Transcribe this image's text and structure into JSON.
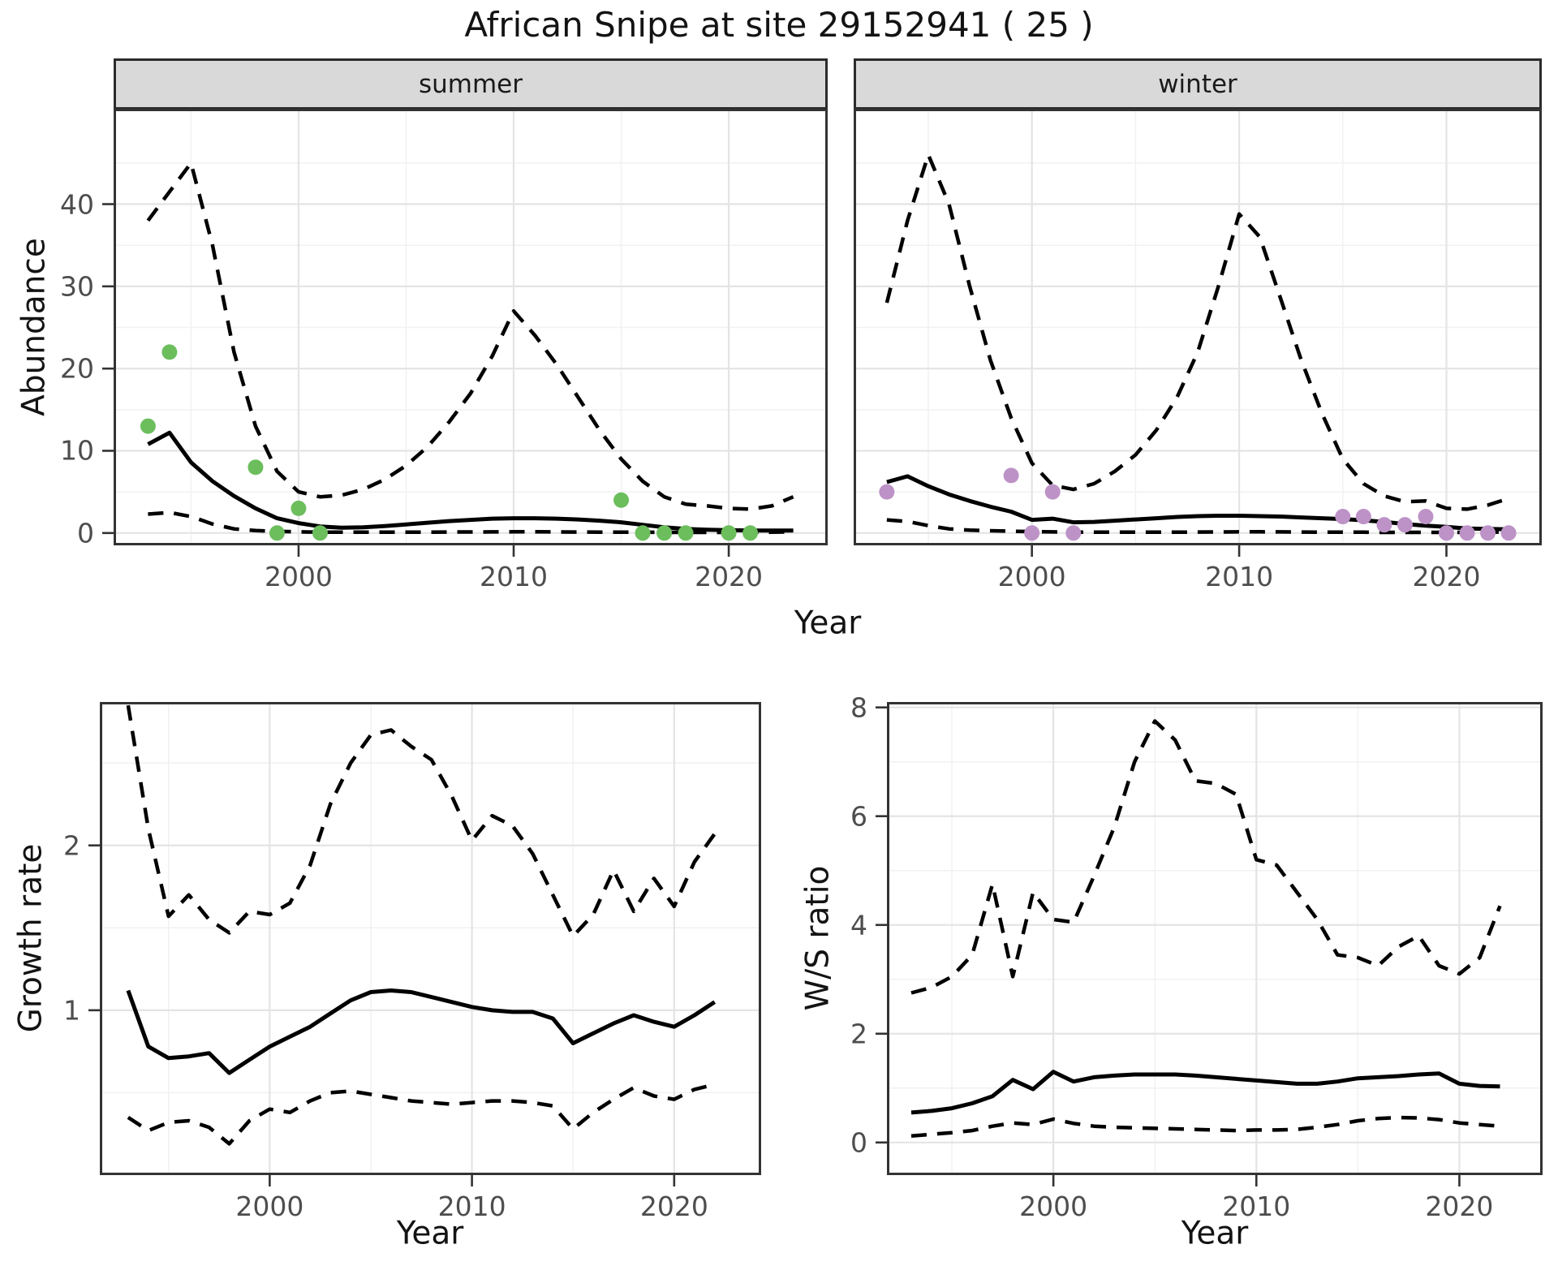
{
  "title": "African Snipe at site 29152941 ( 25 )",
  "colors": {
    "summer_point": "#6cbe5d",
    "winter_point": "#bd93c7",
    "line": "#000000",
    "strip_bg": "#d9d9d9",
    "panel_border": "#333333",
    "grid_major": "#e4e4e4",
    "grid_minor": "#f1f1f1",
    "tick_label": "#4d4d4d",
    "axis_title": "#131313"
  },
  "chart_data": [
    {
      "id": "abundance-summer",
      "type": "line",
      "strip_label": "summer",
      "xlabel": "Year",
      "ylabel": "Abundance",
      "xlim": [
        1991.4,
        2024.6
      ],
      "ylim": [
        -1.5,
        51.6
      ],
      "xticks": [
        2000,
        2010,
        2020
      ],
      "xminor": [
        1995,
        2005,
        2015
      ],
      "yticks": [
        0,
        10,
        20,
        30,
        40
      ],
      "yminor": [
        5,
        15,
        25,
        35,
        45
      ],
      "x": [
        1993,
        1994,
        1995,
        1996,
        1997,
        1998,
        1999,
        2000,
        2001,
        2002,
        2003,
        2004,
        2005,
        2006,
        2007,
        2008,
        2009,
        2010,
        2011,
        2012,
        2013,
        2014,
        2015,
        2016,
        2017,
        2018,
        2019,
        2020,
        2021,
        2022,
        2023
      ],
      "series": [
        {
          "name": "upper-ci",
          "style": "dashed",
          "values": [
            38,
            41.5,
            45,
            35,
            22,
            13,
            7.5,
            5.0,
            4.4,
            4.6,
            5.3,
            6.5,
            8.2,
            10.5,
            13.5,
            17,
            21.5,
            27,
            24,
            20.5,
            16.5,
            12.5,
            9,
            6.3,
            4.4,
            3.5,
            3.3,
            3.0,
            2.9,
            3.3,
            4.4
          ]
        },
        {
          "name": "lower-ci",
          "style": "dashed",
          "values": [
            2.3,
            2.5,
            2.0,
            1.1,
            0.5,
            0.3,
            0.2,
            0.15,
            0.1,
            0.1,
            0.1,
            0.1,
            0.1,
            0.1,
            0.12,
            0.13,
            0.14,
            0.15,
            0.15,
            0.14,
            0.12,
            0.1,
            0.1,
            0.1,
            0.08,
            0.08,
            0.08,
            0.08,
            0.08,
            0.1,
            0.15
          ]
        },
        {
          "name": "fit",
          "style": "solid",
          "values": [
            10.8,
            12.2,
            8.6,
            6.3,
            4.5,
            3.0,
            1.8,
            1.2,
            0.8,
            0.65,
            0.7,
            0.85,
            1.05,
            1.25,
            1.45,
            1.6,
            1.75,
            1.8,
            1.8,
            1.75,
            1.65,
            1.5,
            1.3,
            1.0,
            0.7,
            0.5,
            0.4,
            0.35,
            0.3,
            0.3,
            0.3
          ]
        }
      ],
      "points": {
        "name": "observed-summer",
        "color": "#6cbe5d",
        "x": [
          1993,
          1994,
          1998,
          1999,
          2000,
          2001,
          2015,
          2016,
          2017,
          2018,
          2020,
          2021
        ],
        "y": [
          13,
          22,
          8,
          0,
          3,
          0,
          4,
          0,
          0,
          0,
          0,
          0
        ]
      }
    },
    {
      "id": "abundance-winter",
      "type": "line",
      "strip_label": "winter",
      "xlabel": "Year",
      "ylabel": "Abundance",
      "xlim": [
        1991.4,
        2024.6
      ],
      "ylim": [
        -1.5,
        51.6
      ],
      "xticks": [
        2000,
        2010,
        2020
      ],
      "xminor": [
        1995,
        2005,
        2015
      ],
      "yticks": [
        0,
        10,
        20,
        30,
        40
      ],
      "yminor": [
        5,
        15,
        25,
        35,
        45
      ],
      "x": [
        1993,
        1994,
        1995,
        1996,
        1997,
        1998,
        1999,
        2000,
        2001,
        2002,
        2003,
        2004,
        2005,
        2006,
        2007,
        2008,
        2009,
        2010,
        2011,
        2012,
        2013,
        2014,
        2015,
        2016,
        2017,
        2018,
        2019,
        2020,
        2021,
        2022,
        2023
      ],
      "series": [
        {
          "name": "upper-ci",
          "style": "dashed",
          "values": [
            28,
            38,
            46,
            40,
            30,
            21,
            14,
            8.5,
            5.8,
            5.3,
            6.0,
            7.5,
            9.5,
            12.5,
            16.5,
            22,
            30,
            38.8,
            36,
            28.5,
            21,
            14.5,
            9,
            6,
            4.5,
            3.8,
            3.9,
            3.0,
            2.9,
            3.4,
            4.2
          ]
        },
        {
          "name": "lower-ci",
          "style": "dashed",
          "values": [
            1.6,
            1.4,
            0.9,
            0.5,
            0.35,
            0.28,
            0.22,
            0.18,
            0.14,
            0.12,
            0.1,
            0.1,
            0.1,
            0.1,
            0.1,
            0.12,
            0.13,
            0.15,
            0.15,
            0.14,
            0.12,
            0.1,
            0.1,
            0.1,
            0.08,
            0.08,
            0.08,
            0.08,
            0.08,
            0.1,
            0.14
          ]
        },
        {
          "name": "fit",
          "style": "solid",
          "values": [
            6.2,
            6.9,
            5.7,
            4.7,
            3.9,
            3.2,
            2.6,
            1.6,
            1.75,
            1.3,
            1.35,
            1.5,
            1.65,
            1.8,
            1.95,
            2.05,
            2.1,
            2.1,
            2.05,
            2.0,
            1.9,
            1.8,
            1.7,
            1.55,
            1.35,
            1.1,
            0.9,
            0.75,
            0.55,
            0.5,
            0.45
          ]
        }
      ],
      "points": {
        "name": "observed-winter",
        "color": "#bd93c7",
        "x": [
          1993,
          1999,
          2000,
          2001,
          2002,
          2015,
          2016,
          2017,
          2018,
          2019,
          2020,
          2021,
          2022,
          2023
        ],
        "y": [
          5,
          7,
          0,
          5,
          0,
          2,
          2,
          1,
          1,
          2,
          0,
          0,
          0,
          0
        ]
      }
    },
    {
      "id": "growth-rate",
      "type": "line",
      "strip_label": "",
      "xlabel": "Year",
      "ylabel": "Growth rate",
      "xlim": [
        1991.6,
        2024.3
      ],
      "ylim": [
        0.0,
        2.87
      ],
      "xticks": [
        2000,
        2010,
        2020
      ],
      "xminor": [
        1995,
        2005,
        2015
      ],
      "yticks": [
        1,
        2
      ],
      "yminor": [
        0.5,
        1.5,
        2.5
      ],
      "x": [
        1993,
        1994,
        1995,
        1996,
        1997,
        1998,
        1999,
        2000,
        2001,
        2002,
        2003,
        2004,
        2005,
        2006,
        2007,
        2008,
        2009,
        2010,
        2011,
        2012,
        2013,
        2014,
        2015,
        2016,
        2017,
        2018,
        2019,
        2020,
        2021,
        2022
      ],
      "series": [
        {
          "name": "upper-ci",
          "style": "dashed",
          "values": [
            2.85,
            2.1,
            1.57,
            1.7,
            1.55,
            1.47,
            1.6,
            1.58,
            1.65,
            1.88,
            2.25,
            2.5,
            2.67,
            2.7,
            2.6,
            2.52,
            2.3,
            2.03,
            2.18,
            2.12,
            1.95,
            1.7,
            1.45,
            1.58,
            1.85,
            1.6,
            1.8,
            1.63,
            1.9,
            2.07
          ]
        },
        {
          "name": "lower-ci",
          "style": "dashed",
          "values": [
            0.35,
            0.27,
            0.32,
            0.33,
            0.29,
            0.19,
            0.33,
            0.4,
            0.38,
            0.45,
            0.5,
            0.51,
            0.49,
            0.47,
            0.45,
            0.44,
            0.43,
            0.44,
            0.45,
            0.45,
            0.44,
            0.42,
            0.28,
            0.38,
            0.46,
            0.53,
            0.48,
            0.46,
            0.52,
            0.55
          ]
        },
        {
          "name": "fit",
          "style": "solid",
          "values": [
            1.12,
            0.78,
            0.71,
            0.72,
            0.74,
            0.62,
            0.7,
            0.78,
            0.84,
            0.9,
            0.98,
            1.06,
            1.11,
            1.12,
            1.11,
            1.08,
            1.05,
            1.02,
            1.0,
            0.99,
            0.99,
            0.95,
            0.8,
            0.86,
            0.92,
            0.97,
            0.93,
            0.9,
            0.97,
            1.05
          ]
        }
      ],
      "points": null
    },
    {
      "id": "ws-ratio",
      "type": "line",
      "strip_label": "",
      "xlabel": "Year",
      "ylabel": "W/S ratio",
      "xlim": [
        1991.8,
        2024.1
      ],
      "ylim": [
        -0.6,
        8.1
      ],
      "xticks": [
        2000,
        2010,
        2020
      ],
      "xminor": [
        1995,
        2005,
        2015
      ],
      "yticks": [
        0,
        2,
        4,
        6,
        8
      ],
      "yminor": [
        1,
        3,
        5,
        7
      ],
      "x": [
        1993,
        1994,
        1995,
        1996,
        1997,
        1998,
        1999,
        2000,
        2001,
        2002,
        2003,
        2004,
        2005,
        2006,
        2007,
        2008,
        2009,
        2010,
        2011,
        2012,
        2013,
        2014,
        2015,
        2016,
        2017,
        2018,
        2019,
        2020,
        2021,
        2022
      ],
      "series": [
        {
          "name": "upper-ci",
          "style": "dashed",
          "values": [
            2.75,
            2.85,
            3.05,
            3.45,
            4.75,
            3.05,
            4.6,
            4.1,
            4.05,
            4.9,
            5.8,
            7.0,
            7.75,
            7.4,
            6.65,
            6.6,
            6.4,
            5.2,
            5.1,
            4.6,
            4.1,
            3.45,
            3.4,
            3.25,
            3.6,
            3.8,
            3.25,
            3.1,
            3.4,
            4.35
          ]
        },
        {
          "name": "lower-ci",
          "style": "dashed",
          "values": [
            0.12,
            0.15,
            0.18,
            0.22,
            0.3,
            0.36,
            0.33,
            0.43,
            0.35,
            0.3,
            0.28,
            0.27,
            0.26,
            0.25,
            0.24,
            0.23,
            0.22,
            0.23,
            0.23,
            0.24,
            0.28,
            0.33,
            0.4,
            0.44,
            0.46,
            0.45,
            0.42,
            0.36,
            0.33,
            0.3
          ]
        },
        {
          "name": "fit",
          "style": "solid",
          "values": [
            0.55,
            0.58,
            0.63,
            0.72,
            0.85,
            1.15,
            0.98,
            1.3,
            1.12,
            1.2,
            1.23,
            1.25,
            1.25,
            1.25,
            1.23,
            1.2,
            1.17,
            1.14,
            1.11,
            1.08,
            1.08,
            1.12,
            1.18,
            1.2,
            1.22,
            1.25,
            1.27,
            1.08,
            1.04,
            1.03
          ]
        }
      ],
      "points": null
    }
  ]
}
